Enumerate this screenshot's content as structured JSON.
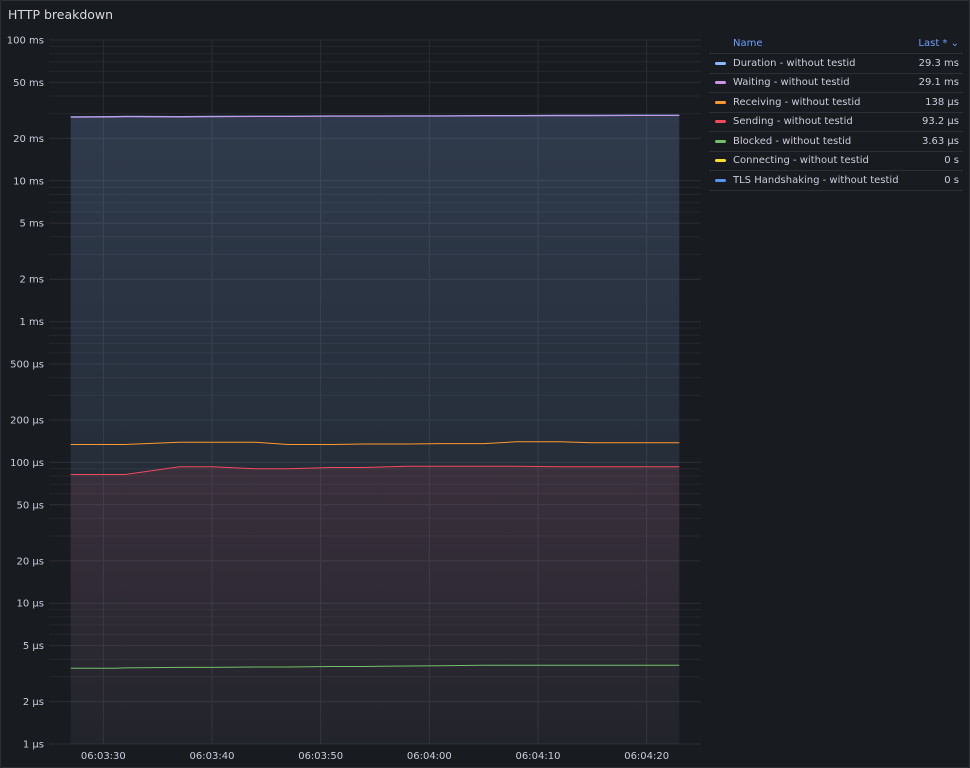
{
  "panel": {
    "title": "HTTP breakdown"
  },
  "legend": {
    "name_header": "Name",
    "value_header": "Last * ⌄",
    "items": [
      {
        "name": "Duration  -  without testid",
        "value": "29.3 ms",
        "color": "#8ab8ff"
      },
      {
        "name": "Waiting  -  without testid",
        "value": "29.1 ms",
        "color": "#ca95e5"
      },
      {
        "name": "Receiving  -  without testid",
        "value": "138 µs",
        "color": "#ff9830"
      },
      {
        "name": "Sending  -  without testid",
        "value": "93.2 µs",
        "color": "#f2495c"
      },
      {
        "name": "Blocked  -  without testid",
        "value": "3.63 µs",
        "color": "#73bf69"
      },
      {
        "name": "Connecting  -  without testid",
        "value": "0 s",
        "color": "#fade2a"
      },
      {
        "name": "TLS Handshaking  -  without testid",
        "value": "0 s",
        "color": "#5794f2"
      }
    ]
  },
  "chart_data": {
    "type": "line",
    "yscale": "log",
    "ylim_us": [
      1,
      100000
    ],
    "y_ticks": [
      {
        "value": 100000,
        "label": "100 ms"
      },
      {
        "value": 50000,
        "label": "50 ms"
      },
      {
        "value": 20000,
        "label": "20 ms"
      },
      {
        "value": 10000,
        "label": "10 ms"
      },
      {
        "value": 5000,
        "label": "5 ms"
      },
      {
        "value": 2000,
        "label": "2 ms"
      },
      {
        "value": 1000,
        "label": "1 ms"
      },
      {
        "value": 500,
        "label": "500 µs"
      },
      {
        "value": 200,
        "label": "200 µs"
      },
      {
        "value": 100,
        "label": "100 µs"
      },
      {
        "value": 50,
        "label": "50 µs"
      },
      {
        "value": 20,
        "label": "20 µs"
      },
      {
        "value": 10,
        "label": "10 µs"
      },
      {
        "value": 5,
        "label": "5 µs"
      },
      {
        "value": 2,
        "label": "2 µs"
      },
      {
        "value": 1,
        "label": "1 µs"
      }
    ],
    "xlim": [
      "06:03:25",
      "06:04:25"
    ],
    "x_ticks": [
      "06:03:30",
      "06:03:40",
      "06:03:50",
      "06:04:00",
      "06:04:10",
      "06:04:20"
    ],
    "grid": true,
    "legend_position": "right",
    "x": [
      "06:03:27",
      "06:03:31",
      "06:03:32",
      "06:03:37",
      "06:03:40",
      "06:03:44",
      "06:03:47",
      "06:03:51",
      "06:03:54",
      "06:03:58",
      "06:04:01",
      "06:04:05",
      "06:04:08",
      "06:04:12",
      "06:04:15",
      "06:04:19",
      "06:04:23"
    ],
    "series": [
      {
        "name": "Duration  -  without testid",
        "color": "#8ab8ff",
        "fill": true,
        "values": [
          28500,
          28600,
          28700,
          28600,
          28700,
          28800,
          28800,
          28900,
          28900,
          29000,
          29000,
          29100,
          29100,
          29200,
          29200,
          29300,
          29300
        ]
      },
      {
        "name": "Waiting  -  without testid",
        "color": "#ca95e5",
        "fill": false,
        "values": [
          28300,
          28400,
          28500,
          28400,
          28500,
          28600,
          28600,
          28700,
          28700,
          28800,
          28800,
          28900,
          28900,
          29000,
          29000,
          29100,
          29100
        ]
      },
      {
        "name": "Receiving  -  without testid",
        "color": "#ff9830",
        "fill": false,
        "values": [
          134,
          134,
          134,
          139,
          139,
          139,
          134,
          134,
          135,
          135,
          136,
          136,
          140,
          140,
          138,
          138,
          138
        ]
      },
      {
        "name": "Sending  -  without testid",
        "color": "#f2495c",
        "fill": true,
        "values": [
          82,
          82,
          82,
          93,
          93,
          90,
          90,
          92,
          92,
          94,
          94,
          94,
          94,
          93,
          93,
          93,
          93.2
        ]
      },
      {
        "name": "Blocked  -  without testid",
        "color": "#73bf69",
        "fill": false,
        "values": [
          3.45,
          3.45,
          3.47,
          3.5,
          3.5,
          3.52,
          3.52,
          3.55,
          3.55,
          3.58,
          3.6,
          3.62,
          3.62,
          3.63,
          3.63,
          3.62,
          3.63
        ]
      }
    ]
  }
}
